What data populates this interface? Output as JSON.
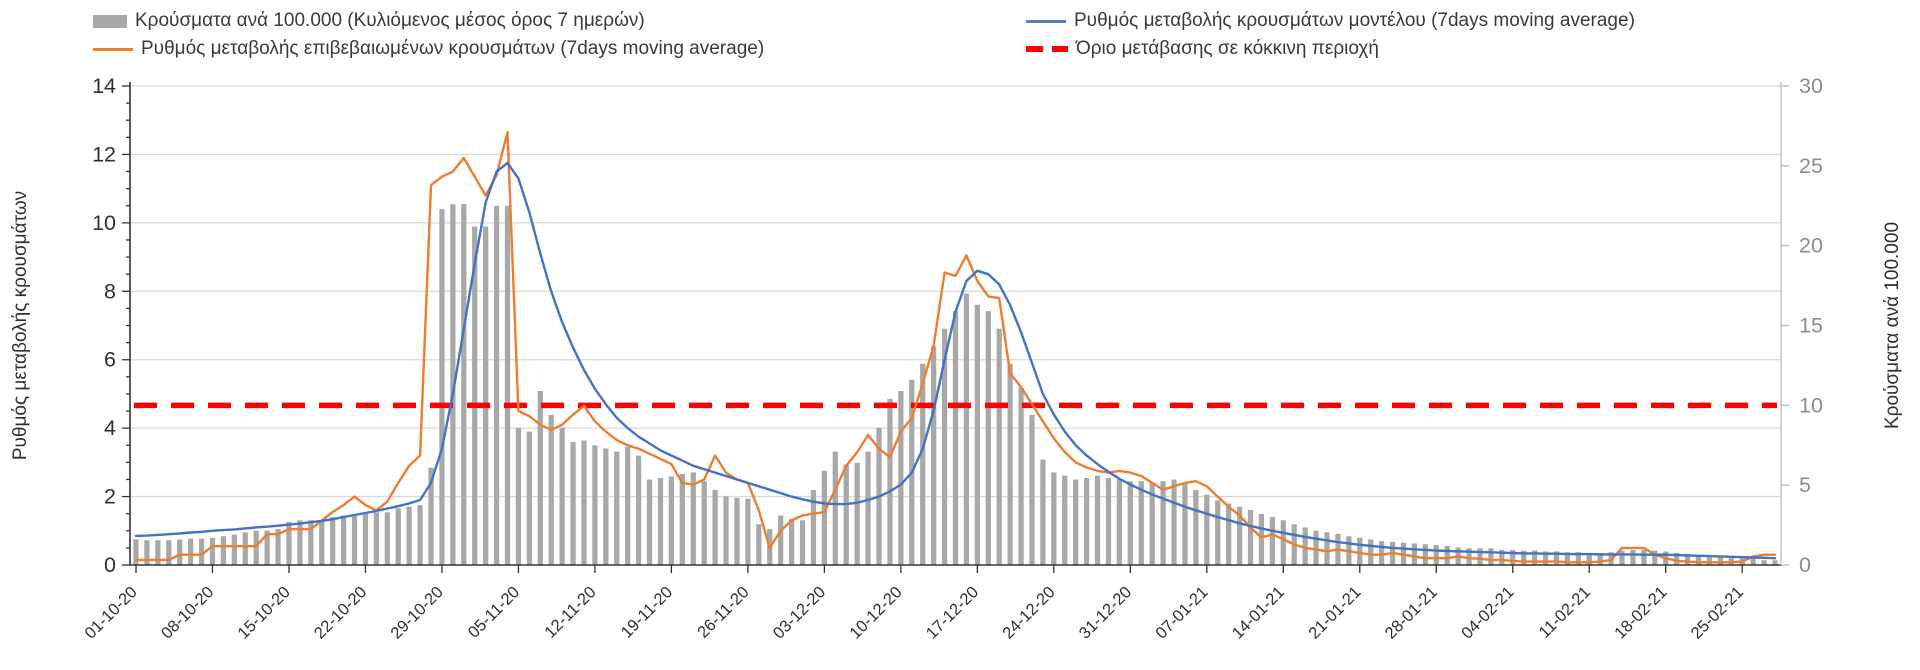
{
  "legend": [
    {
      "label": "Κρούσματα ανά 100.000 (Κυλιόμενος μέσος όρος 7 ημερών)",
      "type": "bar",
      "color": "#a8a8a8"
    },
    {
      "label": "Ρυθμός μεταβολής κρουσμάτων μοντέλου (7days moving average)",
      "type": "line",
      "color": "#4472C4"
    },
    {
      "label": "Ρυθμός μεταβολής επιβεβαιωμένων κρουσμάτων (7days moving average)",
      "type": "line",
      "color": "#ED7D31"
    },
    {
      "label": "Όριο μετάβασης σε κόκκινη περιοχή",
      "type": "dashed",
      "color": "#FF0000"
    }
  ],
  "colors": {
    "bars": "#a8a8a8",
    "model_line": "#4472C4",
    "confirmed_line": "#ED7D31",
    "threshold": "#FF0000",
    "gridline": "#d9d9d9",
    "axis_dark": "#333333",
    "axis_light": "#bfbfbf",
    "tick_label_dark": "#303030",
    "tick_label_gray": "#8c8c8c"
  },
  "chart_data": {
    "type": "bar",
    "subtype": "combo bar+line, dual axis, daily data 01-10-2020 to 28-02-2021",
    "left_axis": {
      "title": "Ρυθμός μεταβολής κρουσμάτων",
      "min": 0,
      "max": 14,
      "ticks": [
        0,
        2,
        4,
        6,
        8,
        10,
        12,
        14
      ],
      "minor_step": 0.5
    },
    "right_axis": {
      "title": "Κρούσματα ανά 100.000",
      "min": 0,
      "max": 30,
      "ticks": [
        0,
        5,
        10,
        15,
        20,
        25,
        30
      ]
    },
    "x_tick_labels": [
      "01-10-20",
      "08-10-20",
      "15-10-20",
      "22-10-20",
      "29-10-20",
      "05-11-20",
      "12-11-20",
      "19-11-20",
      "26-11-20",
      "03-12-20",
      "10-12-20",
      "17-12-20",
      "24-12-20",
      "31-12-20",
      "07-01-21",
      "14-01-21",
      "21-01-21",
      "28-01-21",
      "04-02-21",
      "11-02-21",
      "18-02-21",
      "25-02-21"
    ],
    "x_label_every_n_days": 7,
    "n_days": 151,
    "grid": "horizontal only",
    "legend_position": "top",
    "threshold": {
      "name": "Όριο μετάβασης σε κόκκινη περιοχή",
      "axis": "right",
      "value": 10,
      "style": "dashed",
      "color": "#FF0000"
    },
    "series": [
      {
        "name": "Κρούσματα ανά 100.000 (Κυλιόμενος μέσος όρος 7 ημερών)",
        "type": "bar",
        "axis": "right",
        "color": "#a8a8a8",
        "values": [
          1.6,
          1.55,
          1.55,
          1.55,
          1.6,
          1.65,
          1.65,
          1.7,
          1.8,
          1.9,
          2.05,
          2.15,
          2.15,
          2.25,
          2.7,
          2.8,
          2.8,
          2.8,
          3.0,
          3.1,
          3.1,
          3.2,
          3.3,
          3.3,
          3.55,
          3.65,
          3.75,
          6.1,
          22.3,
          22.6,
          22.6,
          21.2,
          21.2,
          22.5,
          22.5,
          8.6,
          8.35,
          10.9,
          9.4,
          8.6,
          7.7,
          7.8,
          7.5,
          7.3,
          7.1,
          7.4,
          6.85,
          5.35,
          5.45,
          5.55,
          5.7,
          5.8,
          5.25,
          4.7,
          4.3,
          4.2,
          4.15,
          2.55,
          2.25,
          3.1,
          2.9,
          2.8,
          4.7,
          5.9,
          7.1,
          6.3,
          6.4,
          7.1,
          8.6,
          10.4,
          10.9,
          11.6,
          12.6,
          13.7,
          14.8,
          15.9,
          17.0,
          16.3,
          15.9,
          14.8,
          12.6,
          11.1,
          9.4,
          6.6,
          5.8,
          5.6,
          5.35,
          5.45,
          5.6,
          5.45,
          5.35,
          5.25,
          5.25,
          5.15,
          5.25,
          5.35,
          5.15,
          4.7,
          4.4,
          4.05,
          3.85,
          3.65,
          3.45,
          3.2,
          3.0,
          2.8,
          2.55,
          2.35,
          2.15,
          2.05,
          1.95,
          1.8,
          1.7,
          1.6,
          1.5,
          1.45,
          1.4,
          1.35,
          1.3,
          1.25,
          1.2,
          1.1,
          1.05,
          1.05,
          1.05,
          0.95,
          0.95,
          0.9,
          0.9,
          0.85,
          0.85,
          0.8,
          0.8,
          0.75,
          0.75,
          0.8,
          0.9,
          0.95,
          0.95,
          0.9,
          0.85,
          0.75,
          0.7,
          0.65,
          0.6,
          0.55,
          0.45,
          0.45,
          0.4,
          0.3,
          0.3
        ]
      },
      {
        "name": "Ρυθμός μεταβολής επιβεβαιωμένων κρουσμάτων (7days moving average)",
        "type": "line",
        "axis": "left",
        "color": "#ED7D31",
        "values": [
          0.15,
          0.15,
          0.15,
          0.15,
          0.3,
          0.3,
          0.3,
          0.55,
          0.55,
          0.55,
          0.55,
          0.55,
          0.9,
          0.9,
          1.05,
          1.05,
          1.05,
          1.3,
          1.55,
          1.75,
          2.0,
          1.75,
          1.6,
          1.85,
          2.4,
          2.9,
          3.2,
          11.1,
          11.35,
          11.5,
          11.9,
          11.35,
          10.8,
          11.4,
          12.65,
          4.5,
          4.35,
          4.1,
          3.95,
          4.1,
          4.4,
          4.65,
          4.2,
          3.9,
          3.65,
          3.5,
          3.4,
          3.25,
          3.1,
          2.95,
          2.4,
          2.35,
          2.5,
          3.2,
          2.7,
          2.5,
          2.4,
          1.6,
          0.5,
          1.0,
          1.3,
          1.45,
          1.5,
          1.55,
          2.2,
          2.9,
          3.3,
          3.8,
          3.4,
          3.15,
          3.9,
          4.3,
          5.3,
          6.4,
          8.55,
          8.45,
          9.05,
          8.3,
          7.85,
          7.8,
          5.6,
          5.2,
          4.7,
          4.2,
          3.7,
          3.3,
          3.0,
          2.85,
          2.75,
          2.7,
          2.75,
          2.7,
          2.6,
          2.4,
          2.2,
          2.3,
          2.4,
          2.45,
          2.3,
          2.0,
          1.7,
          1.45,
          1.1,
          0.8,
          0.9,
          0.75,
          0.6,
          0.5,
          0.45,
          0.4,
          0.45,
          0.4,
          0.35,
          0.3,
          0.3,
          0.35,
          0.3,
          0.25,
          0.2,
          0.2,
          0.2,
          0.25,
          0.2,
          0.18,
          0.15,
          0.15,
          0.12,
          0.1,
          0.1,
          0.1,
          0.1,
          0.08,
          0.08,
          0.08,
          0.1,
          0.15,
          0.5,
          0.5,
          0.5,
          0.3,
          0.2,
          0.12,
          0.1,
          0.08,
          0.08,
          0.08,
          0.08,
          0.1,
          0.25,
          0.3,
          0.3
        ]
      },
      {
        "name": "Ρυθμός μεταβολής κρουσμάτων μοντέλου (7days moving average)",
        "type": "line",
        "axis": "left",
        "color": "#4472C4",
        "values": [
          0.85,
          0.86,
          0.88,
          0.9,
          0.92,
          0.95,
          0.97,
          1.0,
          1.02,
          1.04,
          1.07,
          1.1,
          1.12,
          1.15,
          1.18,
          1.21,
          1.25,
          1.29,
          1.34,
          1.4,
          1.46,
          1.52,
          1.58,
          1.65,
          1.72,
          1.8,
          1.9,
          2.4,
          3.4,
          5.0,
          6.9,
          8.8,
          10.6,
          11.5,
          11.75,
          11.3,
          10.3,
          9.1,
          8.0,
          7.1,
          6.35,
          5.7,
          5.15,
          4.7,
          4.3,
          4.0,
          3.75,
          3.55,
          3.35,
          3.2,
          3.05,
          2.9,
          2.8,
          2.7,
          2.6,
          2.5,
          2.4,
          2.3,
          2.2,
          2.1,
          2.0,
          1.92,
          1.85,
          1.8,
          1.78,
          1.78,
          1.82,
          1.9,
          2.0,
          2.15,
          2.35,
          2.7,
          3.4,
          4.5,
          6.0,
          7.4,
          8.3,
          8.6,
          8.5,
          8.2,
          7.6,
          6.8,
          5.9,
          5.0,
          4.4,
          3.9,
          3.5,
          3.2,
          2.95,
          2.72,
          2.52,
          2.35,
          2.2,
          2.06,
          1.94,
          1.82,
          1.7,
          1.6,
          1.5,
          1.4,
          1.31,
          1.22,
          1.14,
          1.07,
          1.0,
          0.94,
          0.88,
          0.82,
          0.77,
          0.72,
          0.67,
          0.63,
          0.59,
          0.56,
          0.53,
          0.5,
          0.48,
          0.46,
          0.44,
          0.42,
          0.41,
          0.4,
          0.39,
          0.38,
          0.37,
          0.36,
          0.35,
          0.34,
          0.34,
          0.33,
          0.33,
          0.32,
          0.32,
          0.32,
          0.31,
          0.31,
          0.31,
          0.31,
          0.3,
          0.3,
          0.3,
          0.29,
          0.28,
          0.27,
          0.26,
          0.25,
          0.24,
          0.23,
          0.22,
          0.21,
          0.2
        ]
      }
    ]
  }
}
